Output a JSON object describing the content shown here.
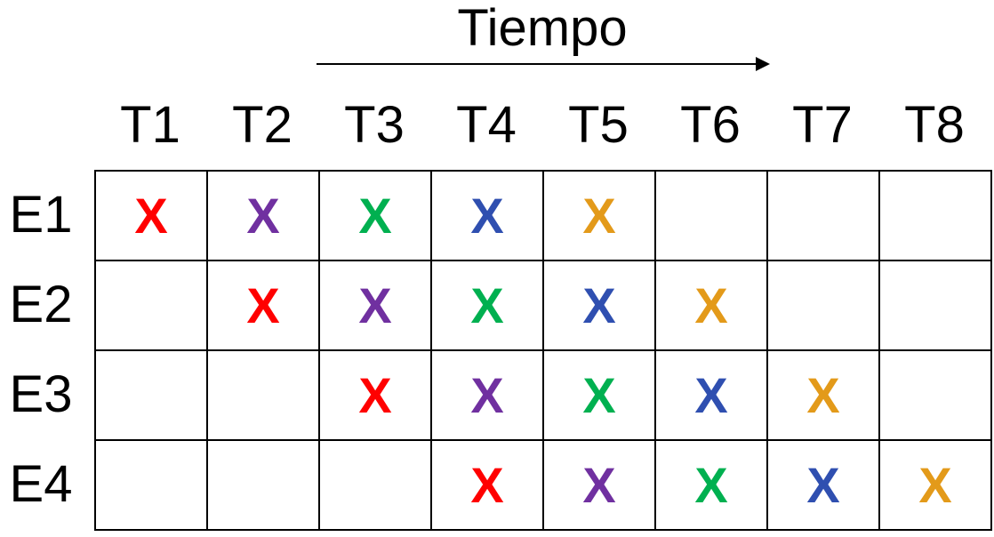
{
  "title": "Tiempo",
  "columns": [
    "T1",
    "T2",
    "T3",
    "T4",
    "T5",
    "T6",
    "T7",
    "T8"
  ],
  "rows": [
    {
      "label": "E1",
      "cells": [
        "red",
        "purple",
        "green",
        "blue",
        "orange",
        "",
        "",
        ""
      ]
    },
    {
      "label": "E2",
      "cells": [
        "",
        "red",
        "purple",
        "green",
        "blue",
        "orange",
        "",
        ""
      ]
    },
    {
      "label": "E3",
      "cells": [
        "",
        "",
        "red",
        "purple",
        "green",
        "blue",
        "orange",
        ""
      ]
    },
    {
      "label": "E4",
      "cells": [
        "",
        "",
        "",
        "red",
        "purple",
        "green",
        "blue",
        "orange"
      ]
    }
  ],
  "mark": "X",
  "colors": {
    "red": "#ff0000",
    "purple": "#7030a0",
    "green": "#00b050",
    "blue": "#2f4fb0",
    "orange": "#e39a1a"
  }
}
